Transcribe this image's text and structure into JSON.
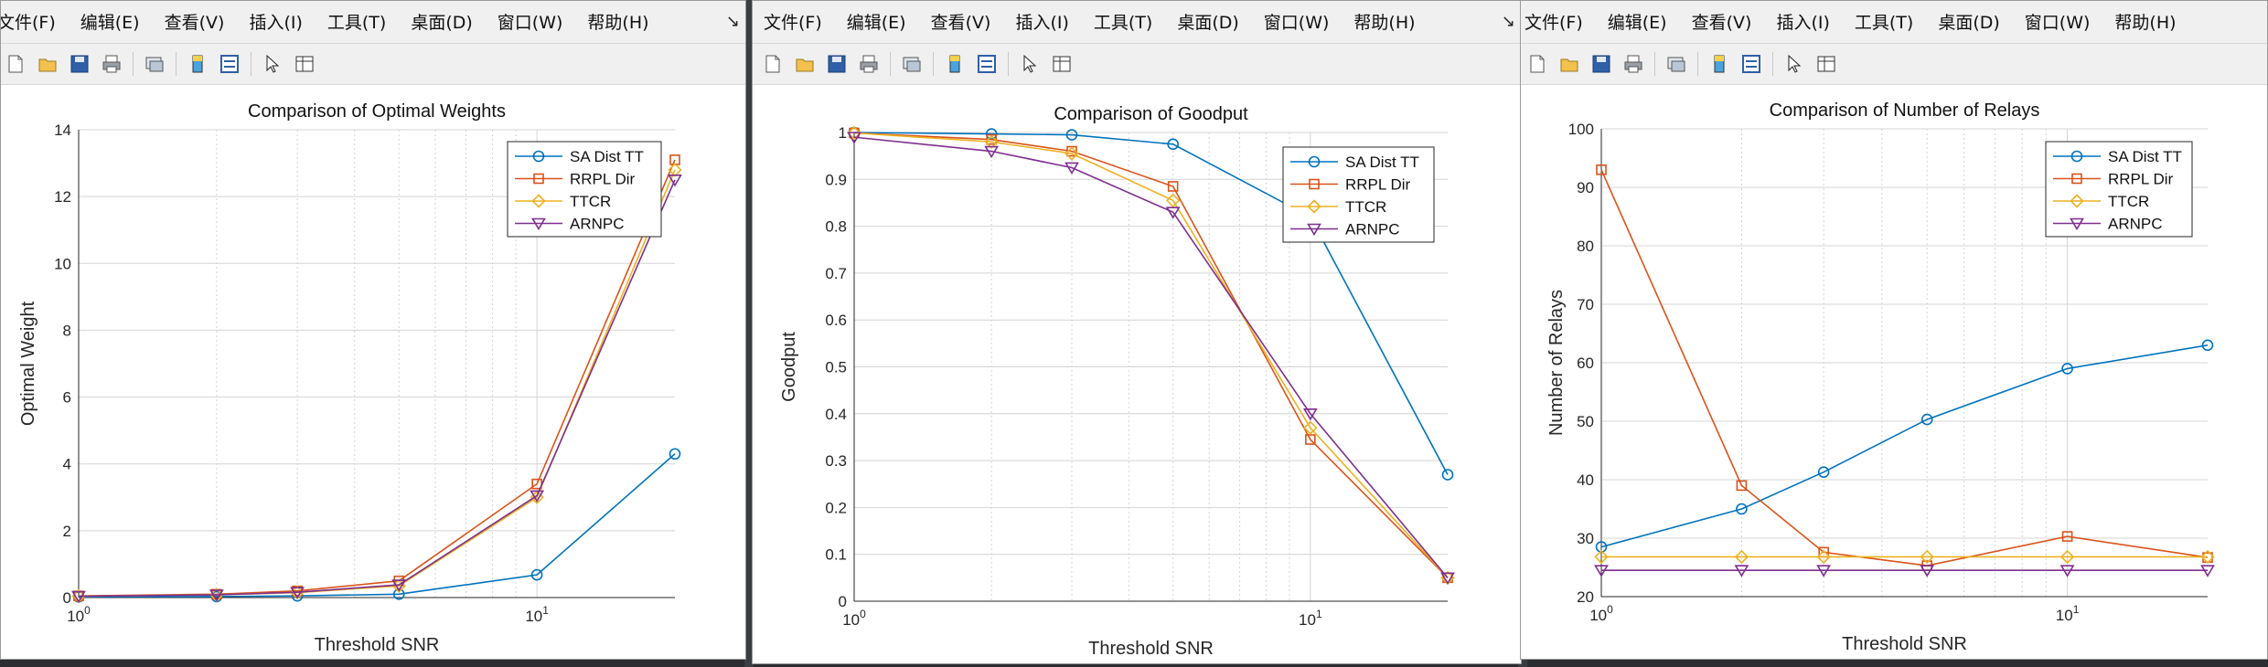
{
  "menu": [
    "文件(F)",
    "编辑(E)",
    "查看(V)",
    "插入(I)",
    "工具(T)",
    "桌面(D)",
    "窗口(W)",
    "帮助(H)"
  ],
  "menu_left_partial": [
    "文件(F)",
    "编辑(E)",
    "查看(V)",
    "插入(I)",
    "工具(T)",
    "桌面(D)",
    "窗口(W)",
    "帮助(H)"
  ],
  "toolbar_icons": [
    "new-figure-icon",
    "open-folder-icon",
    "save-icon",
    "print-icon",
    "link-plot-icon",
    "colorbar-icon",
    "legend-icon",
    "pointer-icon",
    "property-editor-icon"
  ],
  "colors": {
    "sa": "#0072BD",
    "rrpl": "#D95319",
    "ttcr": "#EDB120",
    "arnpc": "#7E2F8E",
    "grid": "#d4d4d4"
  },
  "chart_data": [
    {
      "type": "line",
      "title": "Comparison of Optimal Weights",
      "xlabel": "Threshold SNR",
      "ylabel": "Optimal Weight",
      "xscale": "log",
      "xlim": [
        1,
        20
      ],
      "ylim": [
        0,
        14
      ],
      "yticks": [
        "0",
        "2",
        "4",
        "6",
        "8",
        "10",
        "12",
        "14"
      ],
      "x": [
        1,
        2,
        3,
        5,
        10,
        20
      ],
      "legend_position": "top-right",
      "grid": true,
      "series": [
        {
          "name": "SA Dist TT",
          "marker": "circle",
          "values": [
            0.02,
            0.03,
            0.05,
            0.1,
            0.68,
            4.3
          ]
        },
        {
          "name": "RRPL Dir",
          "marker": "square",
          "values": [
            0.05,
            0.1,
            0.2,
            0.5,
            3.4,
            13.1
          ]
        },
        {
          "name": "TTCR",
          "marker": "diamond",
          "values": [
            0.04,
            0.08,
            0.15,
            0.35,
            3.0,
            12.8
          ]
        },
        {
          "name": "ARNPC",
          "marker": "triangle-down",
          "values": [
            0.04,
            0.08,
            0.16,
            0.38,
            3.05,
            12.5
          ]
        }
      ]
    },
    {
      "type": "line",
      "title": "Comparison of Goodput",
      "xlabel": "Threshold SNR",
      "ylabel": "Goodput",
      "xscale": "log",
      "xlim": [
        1,
        20
      ],
      "ylim": [
        0,
        1
      ],
      "yticks": [
        "0",
        "0.1",
        "0.2",
        "0.3",
        "0.4",
        "0.5",
        "0.6",
        "0.7",
        "0.8",
        "0.9",
        "1"
      ],
      "x": [
        1,
        2,
        3,
        5,
        10,
        20
      ],
      "legend_position": "top-right",
      "grid": true,
      "series": [
        {
          "name": "SA Dist TT",
          "marker": "circle",
          "values": [
            1.0,
            0.997,
            0.995,
            0.975,
            0.82,
            0.27
          ]
        },
        {
          "name": "RRPL Dir",
          "marker": "square",
          "values": [
            0.999,
            0.985,
            0.96,
            0.885,
            0.345,
            0.05
          ]
        },
        {
          "name": "TTCR",
          "marker": "diamond",
          "values": [
            0.999,
            0.98,
            0.955,
            0.855,
            0.37,
            0.05
          ]
        },
        {
          "name": "ARNPC",
          "marker": "triangle-down",
          "values": [
            0.99,
            0.96,
            0.925,
            0.83,
            0.4,
            0.05
          ]
        }
      ]
    },
    {
      "type": "line",
      "title": "Comparison of Number of Relays",
      "xlabel": "Threshold SNR",
      "ylabel": "Number of Relays",
      "xscale": "log",
      "xlim": [
        1,
        20
      ],
      "ylim": [
        20,
        100
      ],
      "yticks": [
        "20",
        "30",
        "40",
        "50",
        "60",
        "70",
        "80",
        "90",
        "100"
      ],
      "x": [
        1,
        2,
        3,
        5,
        10,
        20
      ],
      "legend_position": "top-right",
      "grid": true,
      "series": [
        {
          "name": "SA Dist TT",
          "marker": "circle",
          "values": [
            28.5,
            35,
            41.3,
            50.3,
            59,
            63
          ]
        },
        {
          "name": "RRPL Dir",
          "marker": "square",
          "values": [
            93,
            39,
            27.6,
            25.3,
            30.3,
            26.7
          ]
        },
        {
          "name": "TTCR",
          "marker": "diamond",
          "values": [
            26.8,
            26.8,
            26.8,
            26.8,
            26.8,
            26.8
          ]
        },
        {
          "name": "ARNPC",
          "marker": "triangle-down",
          "values": [
            24.5,
            24.5,
            24.5,
            24.5,
            24.5,
            24.5
          ]
        }
      ]
    }
  ]
}
